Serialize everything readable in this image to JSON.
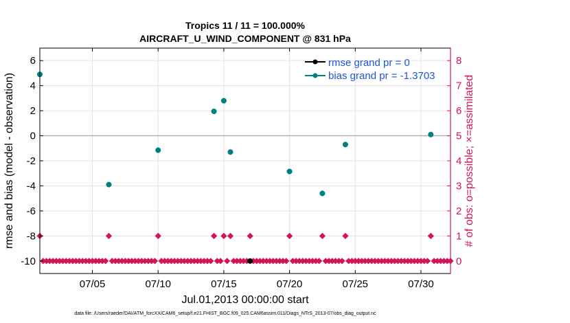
{
  "chart_data": {
    "type": "scatter",
    "title_line1": "Tropics 11 / 11 = 100.000%",
    "title_line2": "AIRCRAFT_U_WIND_COMPONENT @ 831 hPa",
    "xlabel": "Jul.01,2013 00:00:00 start",
    "ylabel": "rmse and bias (model - observation)",
    "ylabel_right": "# of obs: o=possible; ×=assimilated",
    "footer": "data file: /Users/raeder/DAI/ATM_forcXX/CAM6_setup/f.e21.FHIST_BGC.f09_025.CAM6assim.011/Diags_NTrS_2013-07/obs_diag_output.nc",
    "xlim": [
      1.0,
      32.25
    ],
    "ylim": [
      -11,
      7
    ],
    "ylim_right": [
      -0.5,
      8.5
    ],
    "x_ticks": [
      {
        "value": 5,
        "label": "07/05"
      },
      {
        "value": 10,
        "label": "07/10"
      },
      {
        "value": 15,
        "label": "07/15"
      },
      {
        "value": 20,
        "label": "07/20"
      },
      {
        "value": 25,
        "label": "07/25"
      },
      {
        "value": 30,
        "label": "07/30"
      }
    ],
    "y_ticks": [
      {
        "value": 6,
        "label": "6"
      },
      {
        "value": 4,
        "label": "4"
      },
      {
        "value": 2,
        "label": "2"
      },
      {
        "value": 0,
        "label": "0"
      },
      {
        "value": -2,
        "label": "-2"
      },
      {
        "value": -4,
        "label": "-4"
      },
      {
        "value": -6,
        "label": "-6"
      },
      {
        "value": -8,
        "label": "-8"
      },
      {
        "value": -10,
        "label": "-10"
      }
    ],
    "y_ticks_right": [
      {
        "value": 8,
        "label": "8"
      },
      {
        "value": 7,
        "label": "7"
      },
      {
        "value": 6,
        "label": "6"
      },
      {
        "value": 5,
        "label": "5"
      },
      {
        "value": 4,
        "label": "4"
      },
      {
        "value": 3,
        "label": "3"
      },
      {
        "value": 2,
        "label": "2"
      },
      {
        "value": 1,
        "label": "1"
      },
      {
        "value": 0,
        "label": "0"
      }
    ],
    "series": [
      {
        "name": "rmse grand pr = 0",
        "color": "#000000",
        "points": [
          {
            "x": 17.0,
            "y": -10.0
          }
        ]
      },
      {
        "name": "bias grand pr = -1.3703",
        "color": "#008080",
        "points": [
          {
            "x": 1.0,
            "y": 4.9
          },
          {
            "x": 6.25,
            "y": -3.9
          },
          {
            "x": 10.0,
            "y": -1.15
          },
          {
            "x": 14.25,
            "y": 1.95
          },
          {
            "x": 15.0,
            "y": 2.8
          },
          {
            "x": 15.5,
            "y": -1.3
          },
          {
            "x": 20.0,
            "y": -2.85
          },
          {
            "x": 22.5,
            "y": -4.6
          },
          {
            "x": 24.25,
            "y": -0.7
          },
          {
            "x": 30.75,
            "y": 0.1
          }
        ]
      }
    ],
    "obs_counts": {
      "color": "#d4145a",
      "possible_nonzero_x": [
        1.0,
        6.25,
        10.0,
        14.25,
        15.0,
        15.5,
        17.0,
        20.0,
        22.5,
        24.25,
        30.75
      ],
      "nonzero_value": 1,
      "bin_start": 1.0,
      "bin_end": 32.25,
      "bin_step": 0.25,
      "zero_value": 0
    },
    "colors": {
      "axis_right": "#d4145a",
      "legend_text": "#1a56db",
      "grid": "#e3e3e3",
      "zero_line": "#b0b0b0"
    }
  }
}
